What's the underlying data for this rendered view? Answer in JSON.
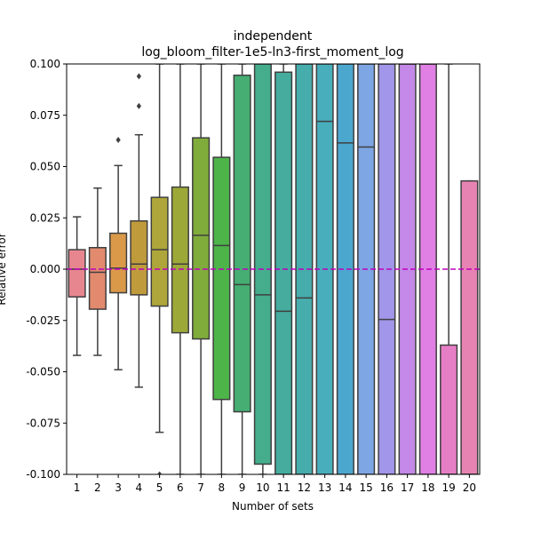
{
  "chart_data": {
    "type": "box",
    "title_line1": "independent",
    "title_line2": "log_bloom_filter-1e5-ln3-first_moment_log",
    "xlabel": "Number of sets",
    "ylabel": "Relative error",
    "ylim": [
      -0.1,
      0.1
    ],
    "yticks": [
      "-0.100",
      "-0.075",
      "-0.050",
      "-0.025",
      "0.000",
      "0.025",
      "0.050",
      "0.075",
      "0.100"
    ],
    "ytick_values": [
      -0.1,
      -0.075,
      -0.05,
      -0.025,
      0.0,
      0.025,
      0.05,
      0.075,
      0.1
    ],
    "reference_line": {
      "y": 0.0,
      "color": "#bf00bf",
      "style": "dashed"
    },
    "categories": [
      "1",
      "2",
      "3",
      "4",
      "5",
      "6",
      "7",
      "8",
      "9",
      "10",
      "11",
      "12",
      "13",
      "14",
      "15",
      "16",
      "17",
      "18",
      "19",
      "20"
    ],
    "boxes": [
      {
        "q1": -0.0135,
        "median": 0.0,
        "q3": 0.0095,
        "whisker_low": -0.042,
        "whisker_high": 0.0255,
        "fliers": [],
        "color": "#e8868f"
      },
      {
        "q1": -0.0195,
        "median": -0.0015,
        "q3": 0.0105,
        "whisker_low": -0.042,
        "whisker_high": 0.0395,
        "fliers": [],
        "color": "#e28a6e"
      },
      {
        "q1": -0.0115,
        "median": 0.0005,
        "q3": 0.0175,
        "whisker_low": -0.049,
        "whisker_high": 0.0505,
        "fliers": [
          0.063
        ],
        "color": "#d99949"
      },
      {
        "q1": -0.0125,
        "median": 0.0025,
        "q3": 0.0235,
        "whisker_low": -0.0575,
        "whisker_high": 0.0655,
        "fliers": [
          0.0795,
          0.094
        ],
        "color": "#c09b3c"
      },
      {
        "q1": -0.018,
        "median": 0.0095,
        "q3": 0.035,
        "whisker_low": -0.0795,
        "whisker_high": 0.1,
        "fliers": [
          -0.1
        ],
        "color": "#aea63a"
      },
      {
        "q1": -0.031,
        "median": 0.0025,
        "q3": 0.04,
        "whisker_low": -0.1,
        "whisker_high": 0.1,
        "fliers": [],
        "color": "#9ca938"
      },
      {
        "q1": -0.034,
        "median": 0.0165,
        "q3": 0.064,
        "whisker_low": -0.1,
        "whisker_high": 0.1,
        "fliers": [],
        "color": "#80ac3c"
      },
      {
        "q1": -0.0635,
        "median": 0.0115,
        "q3": 0.0545,
        "whisker_low": -0.1,
        "whisker_high": 0.1,
        "fliers": [],
        "color": "#4db449"
      },
      {
        "q1": -0.0695,
        "median": -0.0075,
        "q3": 0.0945,
        "whisker_low": -0.1,
        "whisker_high": 0.1,
        "fliers": [],
        "color": "#46ae72"
      },
      {
        "q1": -0.095,
        "median": -0.0125,
        "q3": 0.1,
        "whisker_low": -0.1,
        "whisker_high": 0.1,
        "fliers": [],
        "color": "#45ad8c"
      },
      {
        "q1": -0.1,
        "median": -0.0205,
        "q3": 0.096,
        "whisker_low": -0.1,
        "whisker_high": 0.1,
        "fliers": [],
        "color": "#45ac9e"
      },
      {
        "q1": -0.1,
        "median": -0.014,
        "q3": 0.1,
        "whisker_low": -0.1,
        "whisker_high": 0.1,
        "fliers": [],
        "color": "#47acac"
      },
      {
        "q1": -0.1,
        "median": 0.072,
        "q3": 0.1,
        "whisker_low": -0.1,
        "whisker_high": 0.1,
        "fliers": [],
        "color": "#48aebb"
      },
      {
        "q1": -0.1,
        "median": 0.0615,
        "q3": 0.1,
        "whisker_low": -0.1,
        "whisker_high": 0.1,
        "fliers": [],
        "color": "#4ca7cf"
      },
      {
        "q1": -0.1,
        "median": 0.0595,
        "q3": 0.1,
        "whisker_low": -0.1,
        "whisker_high": 0.1,
        "fliers": [],
        "color": "#7ea6e4"
      },
      {
        "q1": -0.1,
        "median": -0.0245,
        "q3": 0.1,
        "whisker_low": -0.1,
        "whisker_high": 0.1,
        "fliers": [],
        "color": "#a196e9"
      },
      {
        "q1": -0.1,
        "median": 0.1,
        "q3": 0.1,
        "whisker_low": -0.1,
        "whisker_high": 0.1,
        "fliers": [],
        "color": "#c489e8"
      },
      {
        "q1": -0.1,
        "median": 0.1,
        "q3": 0.1,
        "whisker_low": -0.1,
        "whisker_high": 0.1,
        "fliers": [],
        "color": "#e07fe4"
      },
      {
        "q1": -0.1,
        "median": -0.1,
        "q3": -0.037,
        "whisker_low": -0.1,
        "whisker_high": 0.1,
        "fliers": [],
        "color": "#e67ec6"
      },
      {
        "q1": -0.1,
        "median": -0.1,
        "q3": 0.043,
        "whisker_low": -0.1,
        "whisker_high": 0.043,
        "fliers": [],
        "color": "#e783b2"
      }
    ],
    "line_color": "#3f3f3f",
    "grid": false,
    "legend": "none"
  }
}
